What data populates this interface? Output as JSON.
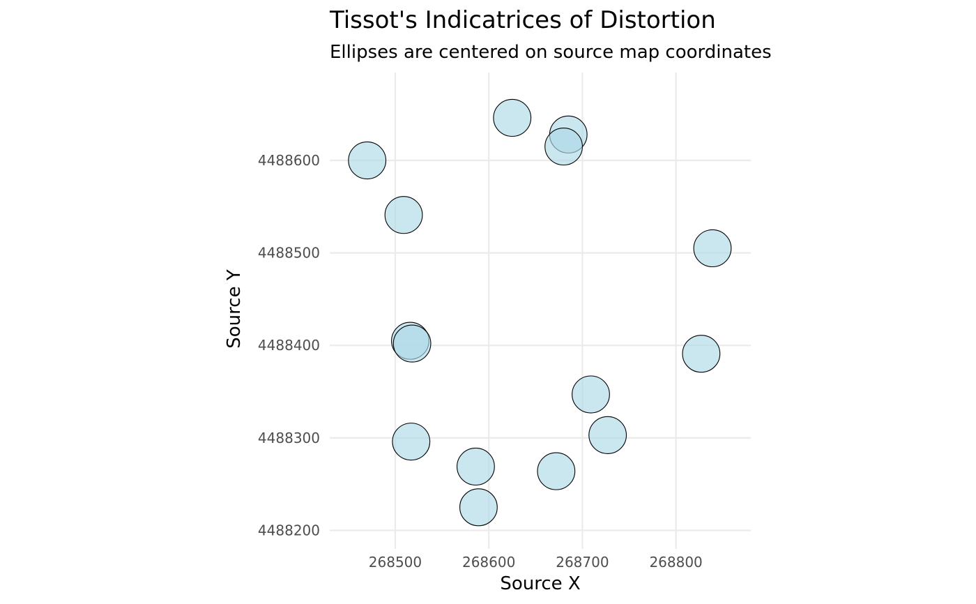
{
  "chart_data": {
    "type": "scatter",
    "title": "Tissot's Indicatrices of Distortion",
    "subtitle": "Ellipses are centered on source map coordinates",
    "xlabel": "Source X",
    "ylabel": "Source Y",
    "xlim": [
      268430,
      268880
    ],
    "ylim": [
      4488180,
      4488695
    ],
    "x_ticks": [
      268500,
      268600,
      268700,
      268800
    ],
    "y_ticks": [
      4488200,
      4488300,
      4488400,
      4488500,
      4488600
    ],
    "grid": true,
    "fill_color": "#add8e6",
    "fill_opacity": 0.65,
    "stroke_color": "#000000",
    "ellipse_radius": [
      20,
      20
    ],
    "points": [
      {
        "x": 268470,
        "y": 4488600
      },
      {
        "x": 268509,
        "y": 4488541
      },
      {
        "x": 268625,
        "y": 4488646
      },
      {
        "x": 268685,
        "y": 4488628
      },
      {
        "x": 268680,
        "y": 4488615
      },
      {
        "x": 268839,
        "y": 4488505
      },
      {
        "x": 268516,
        "y": 4488405
      },
      {
        "x": 268518,
        "y": 4488402
      },
      {
        "x": 268827,
        "y": 4488391
      },
      {
        "x": 268709,
        "y": 4488347
      },
      {
        "x": 268727,
        "y": 4488303
      },
      {
        "x": 268517,
        "y": 4488296
      },
      {
        "x": 268586,
        "y": 4488269
      },
      {
        "x": 268672,
        "y": 4488264
      },
      {
        "x": 268589,
        "y": 4488225
      }
    ]
  }
}
